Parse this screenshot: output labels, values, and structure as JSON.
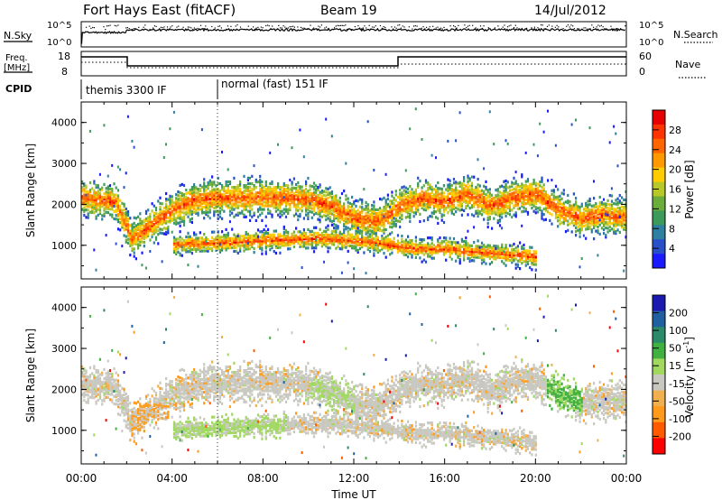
{
  "header": {
    "station": "Fort Hays East (fitACF)",
    "beam": "Beam 19",
    "date": "14/Jul/2012"
  },
  "top_panels": {
    "nsky_label": "N.Sky",
    "nsky_ticks": [
      "10^5",
      "10^0"
    ],
    "nsearch_label": "N.Search",
    "nsearch_ticks": [
      "10^5",
      "10^0"
    ],
    "freq_label": "Freq.",
    "freq_unit": "[MHz]",
    "freq_ticks": [
      "18",
      "8"
    ],
    "nave_label": "Nave",
    "nave_ticks": [
      "60",
      "0"
    ],
    "cpid_label": "CPID",
    "cpid_segments": [
      {
        "label": "themis 3300 IF",
        "start_hour": 0,
        "end_hour": 6
      },
      {
        "label": "normal (fast) 151 IF",
        "start_hour": 6,
        "end_hour": 24
      }
    ]
  },
  "chart_data": [
    {
      "type": "heatmap",
      "name": "power",
      "ylabel": "Slant Range [km]",
      "yticks": [
        1000,
        2000,
        3000,
        4000
      ],
      "ylim": [
        180,
        4500
      ],
      "x_ticks": [
        "00:00",
        "04:00",
        "08:00",
        "12:00",
        "16:00",
        "20:00",
        "00:00"
      ],
      "xlim_hours": [
        0,
        24
      ],
      "colorbar": {
        "label": "Power [dB]",
        "ticks": [
          "4",
          "8",
          "12",
          "16",
          "20",
          "24",
          "28"
        ],
        "min": 0,
        "max": 32
      },
      "bands": [
        {
          "hours": [
            0,
            1.5,
            2.2,
            3,
            4,
            5,
            6,
            7,
            8,
            9,
            10,
            11,
            12,
            13,
            14,
            15,
            16,
            17,
            18,
            19,
            20,
            21,
            22,
            23,
            24
          ],
          "range_km": [
            2200,
            2100,
            1200,
            1500,
            1900,
            2150,
            2200,
            2200,
            2200,
            2200,
            2150,
            2000,
            1700,
            1600,
            2000,
            2200,
            2100,
            2300,
            2000,
            2200,
            2300,
            1900,
            1700,
            1800,
            1700
          ],
          "width_km": 350,
          "peak_db": 28
        },
        {
          "hours": [
            4,
            6,
            8,
            10,
            11,
            12,
            13,
            14,
            15,
            16,
            17,
            18,
            19,
            20
          ],
          "range_km": [
            1050,
            1100,
            1150,
            1200,
            1200,
            1150,
            1100,
            1000,
            950,
            950,
            900,
            850,
            800,
            750
          ],
          "width_km": 200,
          "peak_db": 22
        }
      ]
    },
    {
      "type": "heatmap",
      "name": "velocity",
      "ylabel": "Slant Range [km]",
      "yticks": [
        1000,
        2000,
        3000,
        4000
      ],
      "ylim": [
        180,
        4500
      ],
      "x_ticks": [
        "00:00",
        "04:00",
        "08:00",
        "12:00",
        "16:00",
        "20:00",
        "00:00"
      ],
      "xlabel": "Time UT",
      "xlim_hours": [
        0,
        24
      ],
      "colorbar": {
        "label": "Velocity [m s^-1]",
        "ticks": [
          "200",
          "100",
          "50",
          "15",
          "-15",
          "-50",
          "-100",
          "-200"
        ],
        "min": -250,
        "max": 250
      }
    }
  ],
  "colors": {
    "power_scale": [
      "#1a1aff",
      "#2850c8",
      "#2e7fa0",
      "#3c9a5a",
      "#6aad3a",
      "#b8c828",
      "#ffcc00",
      "#ff9900",
      "#ff6600",
      "#ff3300",
      "#e60000"
    ],
    "velocity_scale": [
      "#ff0000",
      "#ff5a00",
      "#ff9a1a",
      "#f0b050",
      "#c8c8c0",
      "#a0d860",
      "#40b040",
      "#2a8a6a",
      "#2060a0",
      "#1a1ab0"
    ]
  }
}
